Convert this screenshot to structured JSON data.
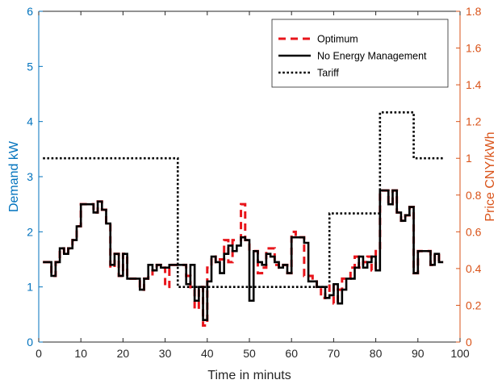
{
  "chart_data": {
    "type": "line",
    "xlabel": "Time in minuts",
    "ylabel_left": "Demand kW",
    "ylabel_right": "Price CNY/kWh",
    "xlim": [
      0,
      100
    ],
    "ylim_left": [
      0,
      6
    ],
    "ylim_right": [
      0,
      1.8
    ],
    "x_ticks": [
      "0",
      "10",
      "20",
      "30",
      "40",
      "50",
      "60",
      "70",
      "80",
      "90",
      "100"
    ],
    "left_ticks": [
      "0",
      "1",
      "2",
      "3",
      "4",
      "5",
      "6"
    ],
    "right_ticks": [
      "0",
      "0.2",
      "0.4",
      "0.6",
      "0.8",
      "1",
      "1.2",
      "1.4",
      "1.6",
      "1.8"
    ],
    "grid": false,
    "legend_position": "top-right",
    "series": [
      {
        "name": "Optimum",
        "axis": "left",
        "style": "dashed",
        "color": "#e8151b",
        "x": [
          1,
          2,
          3,
          4,
          5,
          6,
          7,
          8,
          9,
          10,
          11,
          12,
          13,
          14,
          15,
          16,
          17,
          18,
          19,
          20,
          21,
          22,
          23,
          24,
          25,
          26,
          27,
          28,
          29,
          30,
          31,
          32,
          33,
          34,
          35,
          36,
          37,
          38,
          39,
          40,
          41,
          42,
          43,
          44,
          45,
          46,
          47,
          48,
          49,
          50,
          51,
          52,
          53,
          54,
          55,
          56,
          57,
          58,
          59,
          60,
          61,
          62,
          63,
          64,
          65,
          66,
          67,
          68,
          69,
          70,
          71,
          72,
          73,
          74,
          75,
          76,
          77,
          78,
          79,
          80,
          81,
          82,
          83,
          84,
          85,
          86,
          87,
          88,
          89,
          90,
          91,
          92,
          93,
          94,
          95,
          96
        ],
        "y": [
          1.45,
          1.45,
          1.2,
          1.45,
          1.7,
          1.6,
          1.7,
          1.85,
          2.1,
          2.5,
          2.5,
          2.5,
          2.35,
          2.55,
          2.4,
          2.15,
          1.35,
          1.6,
          1.2,
          1.6,
          1.15,
          1.15,
          1.15,
          0.95,
          1.15,
          1.2,
          1.3,
          1.4,
          1.35,
          1.0,
          1.4,
          1.4,
          1.4,
          1.4,
          1.2,
          0.95,
          0.6,
          1.0,
          0.3,
          1.35,
          1.55,
          1.45,
          1.5,
          1.85,
          1.45,
          1.85,
          1.85,
          2.5,
          1.85,
          1.65,
          1.65,
          1.25,
          1.35,
          1.7,
          1.7,
          1.4,
          1.35,
          1.4,
          1.25,
          2.0,
          1.9,
          1.9,
          1.2,
          1.2,
          1.1,
          1.0,
          0.8,
          0.9,
          1.05,
          0.7,
          0.95,
          1.15,
          1.15,
          1.35,
          1.55,
          1.35,
          1.45,
          1.55,
          1.3,
          1.65,
          2.75,
          2.75,
          2.5,
          2.75,
          2.35,
          2.2,
          2.3,
          2.45,
          1.25,
          1.65,
          1.65,
          1.65,
          1.4,
          1.6,
          1.45,
          1.45
        ]
      },
      {
        "name": "No Energy Management",
        "axis": "left",
        "style": "solid",
        "color": "#000000",
        "x": [
          1,
          2,
          3,
          4,
          5,
          6,
          7,
          8,
          9,
          10,
          11,
          12,
          13,
          14,
          15,
          16,
          17,
          18,
          19,
          20,
          21,
          22,
          23,
          24,
          25,
          26,
          27,
          28,
          29,
          30,
          31,
          32,
          33,
          34,
          35,
          36,
          37,
          38,
          39,
          40,
          41,
          42,
          43,
          44,
          45,
          46,
          47,
          48,
          49,
          50,
          51,
          52,
          53,
          54,
          55,
          56,
          57,
          58,
          59,
          60,
          61,
          62,
          63,
          64,
          65,
          66,
          67,
          68,
          69,
          70,
          71,
          72,
          73,
          74,
          75,
          76,
          77,
          78,
          79,
          80,
          81,
          82,
          83,
          84,
          85,
          86,
          87,
          88,
          89,
          90,
          91,
          92,
          93,
          94,
          95,
          96
        ],
        "y": [
          1.45,
          1.45,
          1.2,
          1.45,
          1.7,
          1.6,
          1.7,
          1.85,
          2.1,
          2.5,
          2.5,
          2.5,
          2.35,
          2.55,
          2.4,
          2.15,
          1.4,
          1.6,
          1.2,
          1.6,
          1.15,
          1.15,
          1.15,
          0.95,
          1.15,
          1.4,
          1.3,
          1.4,
          1.35,
          1.35,
          1.4,
          1.4,
          1.4,
          1.4,
          1.05,
          1.4,
          0.75,
          1.0,
          0.4,
          1.1,
          1.55,
          1.45,
          1.25,
          1.6,
          1.75,
          1.65,
          1.75,
          1.9,
          1.85,
          0.75,
          1.65,
          1.45,
          1.4,
          1.6,
          1.55,
          1.45,
          1.35,
          1.4,
          1.25,
          1.9,
          1.9,
          1.9,
          1.8,
          1.1,
          1.1,
          1.0,
          1.0,
          0.8,
          0.85,
          1.05,
          0.7,
          0.95,
          1.15,
          1.15,
          1.35,
          1.55,
          1.35,
          1.45,
          1.55,
          1.3,
          2.75,
          2.75,
          2.5,
          2.75,
          2.35,
          2.2,
          2.3,
          2.45,
          1.25,
          1.65,
          1.65,
          1.65,
          1.4,
          1.6,
          1.45,
          1.45
        ]
      },
      {
        "name": "Tariff",
        "axis": "right",
        "style": "dotted",
        "color": "#000000",
        "x": [
          1,
          33,
          33,
          69,
          69,
          81,
          81,
          89,
          89,
          96
        ],
        "y": [
          1.0,
          1.0,
          0.3,
          0.3,
          0.7,
          0.7,
          1.25,
          1.25,
          1.0,
          1.0
        ]
      }
    ]
  },
  "colors": {
    "left_axis": "#0072bd",
    "right_axis": "#d95319",
    "axes_box": "#262626"
  }
}
